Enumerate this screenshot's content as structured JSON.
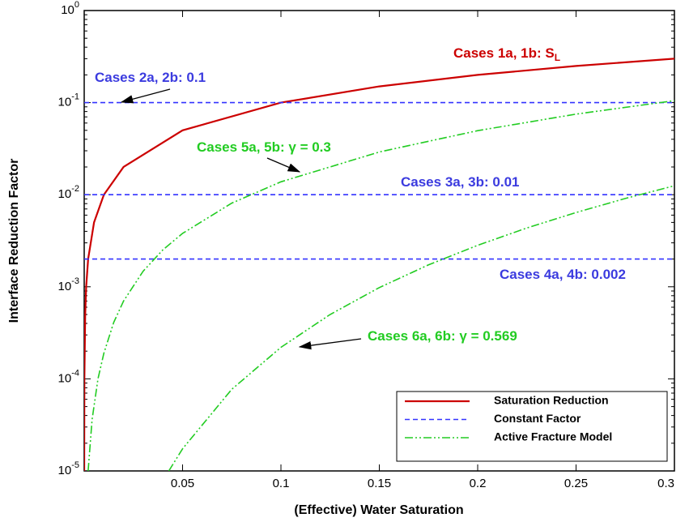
{
  "chart_data": {
    "type": "line",
    "xlabel": "(Effective) Water Saturation",
    "ylabel": "Interface Reduction Factor",
    "xlim": [
      0,
      0.3
    ],
    "xticks": [
      0.05,
      0.1,
      0.15,
      0.2,
      0.25,
      0.3
    ],
    "ylim": [
      1e-05,
      1
    ],
    "log_y": true,
    "yticks": [
      {
        "value": 1e-05,
        "label": "10",
        "exp": "-5"
      },
      {
        "value": 0.0001,
        "label": "10",
        "exp": "-4"
      },
      {
        "value": 0.001,
        "label": "10",
        "exp": "-3"
      },
      {
        "value": 0.01,
        "label": "10",
        "exp": "-2"
      },
      {
        "value": 0.1,
        "label": "10",
        "exp": "-1"
      },
      {
        "value": 1,
        "label": "10",
        "exp": "0"
      }
    ],
    "series": [
      {
        "color": "#cc0000",
        "style": "solid",
        "x": [
          1e-05,
          0.0001,
          0.0005,
          0.001,
          0.002,
          0.005,
          0.01,
          0.02,
          0.05,
          0.1,
          0.15,
          0.2,
          0.25,
          0.3
        ],
        "values": [
          1e-05,
          0.0001,
          0.0005,
          0.001,
          0.002,
          0.005,
          0.01,
          0.02,
          0.05,
          0.1,
          0.15,
          0.2,
          0.25,
          0.3
        ]
      },
      {
        "color": "#3333ff",
        "style": "dashed",
        "x": [
          0,
          0.3
        ],
        "values": [
          0.1,
          0.1
        ]
      },
      {
        "color": "#3333ff",
        "style": "dashed",
        "x": [
          0,
          0.3
        ],
        "values": [
          0.01,
          0.01
        ]
      },
      {
        "color": "#3333ff",
        "style": "dashed",
        "x": [
          0,
          0.3
        ],
        "values": [
          0.002,
          0.002
        ]
      },
      {
        "color": "#22cc22",
        "style": "dashdotdot",
        "x": [
          0.002,
          0.004,
          0.007,
          0.01,
          0.015,
          0.02,
          0.03,
          0.04,
          0.05,
          0.075,
          0.1,
          0.15,
          0.2,
          0.25,
          0.3
        ],
        "values": [
          1e-05,
          3.6e-05,
          0.0001,
          0.00019,
          0.00041,
          0.0007,
          0.00148,
          0.00252,
          0.0038,
          0.0081,
          0.0138,
          0.0291,
          0.0496,
          0.075,
          0.105
        ]
      },
      {
        "color": "#22cc22",
        "style": "dashdotdot",
        "x": [
          0.043,
          0.05,
          0.075,
          0.1,
          0.125,
          0.15,
          0.175,
          0.2,
          0.225,
          0.25,
          0.275,
          0.3
        ],
        "values": [
          1e-05,
          1.74e-05,
          7.7e-05,
          0.00022,
          0.0005,
          0.00098,
          0.00173,
          0.00282,
          0.00435,
          0.0064,
          0.0091,
          0.0125
        ]
      }
    ],
    "legend": [
      {
        "label": "Saturation Reduction",
        "color": "#cc0000",
        "style": "solid"
      },
      {
        "label": "Constant Factor",
        "color": "#3333ff",
        "style": "dashed"
      },
      {
        "label": "Active Fracture Model",
        "color": "#22cc22",
        "style": "dashdotdot"
      }
    ],
    "annotations": [
      {
        "text": "Cases 1a, 1b: S",
        "sub": "L",
        "color": "#cc0000"
      },
      {
        "text": "Cases 2a, 2b: 0.1",
        "color": "#3b3bdf"
      },
      {
        "text": "Cases 5a, 5b: γ = 0.3",
        "color": "#22cc22"
      },
      {
        "text": "Cases 3a, 3b: 0.01",
        "color": "#3b3bdf"
      },
      {
        "text": "Cases 4a, 4b: 0.002",
        "color": "#3b3bdf"
      },
      {
        "text": "Cases 6a, 6b: γ = 0.569",
        "color": "#22cc22"
      }
    ]
  }
}
